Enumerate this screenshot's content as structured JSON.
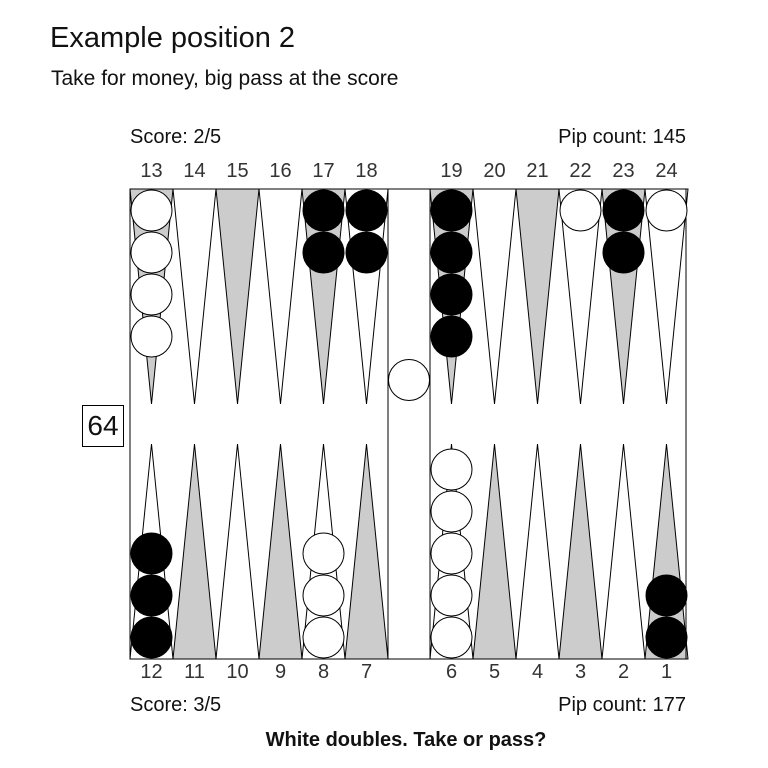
{
  "title": "Example position 2",
  "subtitle": "Take for money, big pass at the score",
  "top_player": {
    "score": "Score: 2/5",
    "pip_count": "Pip count: 145"
  },
  "bottom_player": {
    "score": "Score: 3/5",
    "pip_count": "Pip count: 177"
  },
  "cube_value": "64",
  "question": "White doubles. Take or pass?",
  "point_labels": {
    "top": [
      "13",
      "14",
      "15",
      "16",
      "17",
      "18",
      "19",
      "20",
      "21",
      "22",
      "23",
      "24"
    ],
    "bottom": [
      "12",
      "11",
      "10",
      "9",
      "8",
      "7",
      "6",
      "5",
      "4",
      "3",
      "2",
      "1"
    ]
  },
  "colors": {
    "board_bg": "#ffffff",
    "point_light": "#ffffff",
    "point_dark": "#cccccc",
    "black_checker": "#000000",
    "white_checker": "#ffffff",
    "outline": "#000000"
  },
  "checkers": [
    {
      "point": 13,
      "color": "white",
      "count": 4
    },
    {
      "point": 17,
      "color": "black",
      "count": 2
    },
    {
      "point": 18,
      "color": "black",
      "count": 2
    },
    {
      "point": 19,
      "color": "black",
      "count": 4
    },
    {
      "point": 22,
      "color": "white",
      "count": 1
    },
    {
      "point": 23,
      "color": "black",
      "count": 2
    },
    {
      "point": 24,
      "color": "white",
      "count": 1
    },
    {
      "point": 12,
      "color": "black",
      "count": 3
    },
    {
      "point": 8,
      "color": "white",
      "count": 3
    },
    {
      "point": 6,
      "color": "white",
      "count": 5
    },
    {
      "point": 1,
      "color": "black",
      "count": 2
    }
  ],
  "bar": [
    {
      "color": "white",
      "count": 1,
      "side": "top"
    }
  ]
}
